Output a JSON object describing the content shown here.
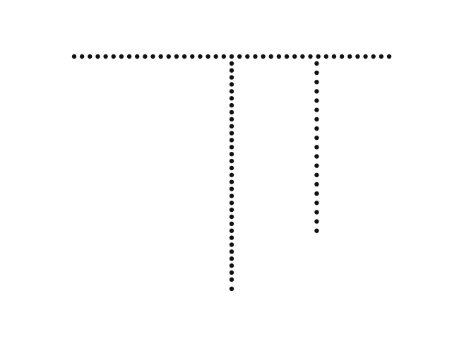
{
  "chart_data": {
    "type": "scatter",
    "axes_visible": false,
    "grid": false,
    "legend": "none",
    "marker_color": "#111111",
    "background": "#ffffff",
    "xlim": [
      0,
      1
    ],
    "ylim": [
      0,
      1
    ],
    "series": [
      {
        "points": [
          [
            0.0,
            1.0
          ],
          [
            0.025,
            1.0
          ],
          [
            0.05,
            1.0
          ],
          [
            0.075,
            1.0
          ],
          [
            0.1,
            1.0
          ],
          [
            0.125,
            1.0
          ],
          [
            0.15,
            1.0
          ],
          [
            0.175,
            1.0
          ],
          [
            0.2,
            1.0
          ],
          [
            0.225,
            1.0
          ],
          [
            0.25,
            1.0
          ],
          [
            0.275,
            1.0
          ],
          [
            0.3,
            1.0
          ],
          [
            0.325,
            1.0
          ],
          [
            0.35,
            1.0
          ],
          [
            0.375,
            1.0
          ],
          [
            0.4,
            1.0
          ],
          [
            0.425,
            1.0
          ],
          [
            0.45,
            1.0
          ],
          [
            0.475,
            1.0
          ],
          [
            0.5,
            1.0
          ],
          [
            0.525,
            1.0
          ],
          [
            0.55,
            1.0
          ],
          [
            0.575,
            1.0
          ],
          [
            0.6,
            1.0
          ],
          [
            0.625,
            1.0
          ],
          [
            0.65,
            1.0
          ],
          [
            0.675,
            1.0
          ],
          [
            0.7,
            1.0
          ],
          [
            0.725,
            1.0
          ],
          [
            0.75,
            1.0
          ],
          [
            0.775,
            1.0
          ],
          [
            0.8,
            1.0
          ],
          [
            0.825,
            1.0
          ],
          [
            0.85,
            1.0
          ],
          [
            0.875,
            1.0
          ],
          [
            0.9,
            1.0
          ],
          [
            0.925,
            1.0
          ],
          [
            0.95,
            1.0
          ],
          [
            0.975,
            1.0
          ],
          [
            1.0,
            1.0
          ],
          [
            0.5,
            0.97
          ],
          [
            0.5,
            0.94
          ],
          [
            0.5,
            0.91
          ],
          [
            0.5,
            0.88
          ],
          [
            0.5,
            0.85
          ],
          [
            0.5,
            0.82
          ],
          [
            0.5,
            0.79
          ],
          [
            0.5,
            0.76
          ],
          [
            0.5,
            0.73
          ],
          [
            0.5,
            0.7
          ],
          [
            0.5,
            0.67
          ],
          [
            0.5,
            0.64
          ],
          [
            0.5,
            0.61
          ],
          [
            0.5,
            0.58
          ],
          [
            0.5,
            0.55
          ],
          [
            0.5,
            0.52
          ],
          [
            0.5,
            0.49
          ],
          [
            0.5,
            0.46
          ],
          [
            0.5,
            0.43
          ],
          [
            0.5,
            0.4
          ],
          [
            0.5,
            0.37
          ],
          [
            0.5,
            0.34
          ],
          [
            0.5,
            0.31
          ],
          [
            0.5,
            0.28
          ],
          [
            0.5,
            0.25
          ],
          [
            0.5,
            0.22
          ],
          [
            0.5,
            0.19
          ],
          [
            0.5,
            0.16
          ],
          [
            0.5,
            0.13
          ],
          [
            0.5,
            0.1
          ],
          [
            0.5,
            0.07
          ],
          [
            0.5,
            0.04
          ],
          [
            0.5,
            0.0
          ],
          [
            0.77,
            0.97
          ],
          [
            0.77,
            0.93
          ],
          [
            0.77,
            0.89
          ],
          [
            0.77,
            0.85
          ],
          [
            0.77,
            0.81
          ],
          [
            0.77,
            0.77
          ],
          [
            0.77,
            0.73
          ],
          [
            0.77,
            0.69
          ],
          [
            0.77,
            0.65
          ],
          [
            0.77,
            0.61
          ],
          [
            0.77,
            0.57
          ],
          [
            0.77,
            0.53
          ],
          [
            0.77,
            0.49
          ],
          [
            0.77,
            0.45
          ],
          [
            0.77,
            0.41
          ],
          [
            0.77,
            0.37
          ],
          [
            0.77,
            0.33
          ],
          [
            0.77,
            0.29
          ],
          [
            0.77,
            0.25
          ]
        ]
      }
    ]
  }
}
